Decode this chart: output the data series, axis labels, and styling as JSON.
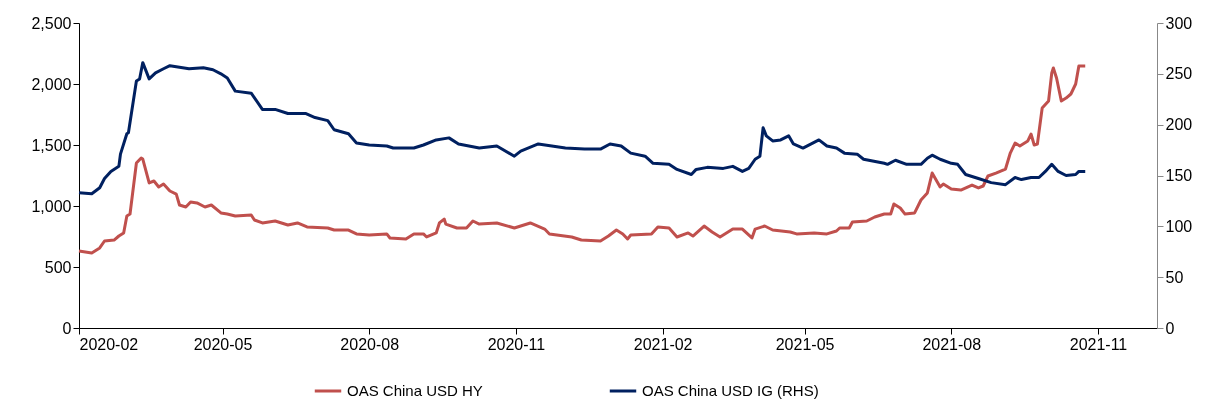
{
  "chart_data": {
    "type": "line",
    "legend": "bottom",
    "grid": false,
    "line_style": "solid",
    "marker": "none",
    "xlim": [
      "2020-02-01",
      "2021-12-08"
    ],
    "xticks": [
      "2020-02",
      "2020-05",
      "2020-08",
      "2020-11",
      "2021-02",
      "2021-05",
      "2021-08",
      "2021-11"
    ],
    "ylim": [
      0,
      2500
    ],
    "yticks": [
      0,
      500,
      {
        "value": 1000,
        "label": "1,000"
      },
      {
        "value": 1500,
        "label": "1,500"
      },
      {
        "value": 2000,
        "label": "2,000"
      },
      {
        "value": 2500,
        "label": "2,500"
      }
    ],
    "y2lim": [
      0,
      300
    ],
    "y2ticks": [
      0,
      50,
      100,
      150,
      200,
      250,
      300
    ],
    "series": [
      {
        "name": "OAS China USD HY",
        "color": "#c0504d",
        "x": [
          "2020-02-01",
          "2020-02-09",
          "2020-02-14",
          "2020-02-17",
          "2020-02-23",
          "2020-02-26",
          "2020-02-29",
          "2020-03-02",
          "2020-03-04",
          "2020-03-08",
          "2020-03-11",
          "2020-03-12",
          "2020-03-16",
          "2020-03-19",
          "2020-03-22",
          "2020-03-25",
          "2020-03-29",
          "2020-04-02",
          "2020-04-04",
          "2020-04-08",
          "2020-04-11",
          "2020-04-15",
          "2020-04-20",
          "2020-04-24",
          "2020-04-30",
          "2020-05-04",
          "2020-05-09",
          "2020-05-19",
          "2020-05-21",
          "2020-05-26",
          "2020-06-03",
          "2020-06-11",
          "2020-06-17",
          "2020-06-23",
          "2020-07-06",
          "2020-07-10",
          "2020-07-19",
          "2020-07-24",
          "2020-08-01",
          "2020-08-12",
          "2020-08-14",
          "2020-08-24",
          "2020-08-29",
          "2020-09-04",
          "2020-09-06",
          "2020-09-12",
          "2020-09-14",
          "2020-09-17",
          "2020-09-18",
          "2020-09-25",
          "2020-10-01",
          "2020-10-05",
          "2020-10-09",
          "2020-10-20",
          "2020-10-31",
          "2020-11-10",
          "2020-11-19",
          "2020-11-22",
          "2020-12-06",
          "2020-12-12",
          "2020-12-24",
          "2020-12-29",
          "2021-01-03",
          "2021-01-07",
          "2021-01-10",
          "2021-01-12",
          "2021-01-25",
          "2021-01-29",
          "2021-02-05",
          "2021-02-10",
          "2021-02-17",
          "2021-02-20",
          "2021-02-27",
          "2021-03-04",
          "2021-03-09",
          "2021-03-17",
          "2021-03-23",
          "2021-03-29",
          "2021-03-31",
          "2021-04-06",
          "2021-04-11",
          "2021-04-22",
          "2021-04-26",
          "2021-05-07",
          "2021-05-15",
          "2021-05-21",
          "2021-05-23",
          "2021-05-29",
          "2021-05-31",
          "2021-06-09",
          "2021-06-14",
          "2021-06-20",
          "2021-06-24",
          "2021-06-26",
          "2021-06-30",
          "2021-07-03",
          "2021-07-09",
          "2021-07-13",
          "2021-07-17",
          "2021-07-20",
          "2021-07-25",
          "2021-07-27",
          "2021-08-01",
          "2021-08-07",
          "2021-08-14",
          "2021-08-18",
          "2021-08-21",
          "2021-08-24",
          "2021-08-29",
          "2021-09-04",
          "2021-09-07",
          "2021-09-10",
          "2021-09-13",
          "2021-09-18",
          "2021-09-20",
          "2021-09-22",
          "2021-09-24",
          "2021-09-27",
          "2021-10-01",
          "2021-10-03",
          "2021-10-04",
          "2021-10-06",
          "2021-10-09",
          "2021-10-12",
          "2021-10-15",
          "2021-10-18",
          "2021-10-20",
          "2021-10-24"
        ],
        "values": [
          631,
          615,
          656,
          713,
          721,
          754,
          779,
          918,
          934,
          1352,
          1393,
          1385,
          1189,
          1205,
          1156,
          1180,
          1123,
          1098,
          1008,
          992,
          1033,
          1025,
          992,
          1008,
          943,
          934,
          918,
          926,
          885,
          861,
          877,
          844,
          861,
          828,
          820,
          803,
          803,
          771,
          762,
          771,
          738,
          730,
          771,
          771,
          746,
          779,
          861,
          893,
          852,
          820,
          820,
          877,
          852,
          861,
          820,
          861,
          811,
          771,
          746,
          721,
          713,
          754,
          803,
          771,
          730,
          762,
          771,
          828,
          820,
          746,
          779,
          754,
          836,
          787,
          746,
          811,
          811,
          738,
          811,
          836,
          803,
          787,
          771,
          779,
          771,
          795,
          820,
          820,
          869,
          877,
          910,
          934,
          934,
          1016,
          984,
          934,
          943,
          1049,
          1107,
          1270,
          1156,
          1180,
          1139,
          1131,
          1172,
          1148,
          1164,
          1246,
          1270,
          1303,
          1434,
          1516,
          1492,
          1533,
          1590,
          1500,
          1508,
          1803,
          1861,
          2090,
          2131,
          2049,
          1861,
          1885,
          1918,
          2000,
          2148,
          2148
        ]
      },
      {
        "name": "OAS China USD IG (RHS)",
        "color": "#002060",
        "axis": "y2",
        "x": [
          "2020-02-01",
          "2020-02-09",
          "2020-02-14",
          "2020-02-17",
          "2020-02-21",
          "2020-02-26",
          "2020-02-27",
          "2020-03-02",
          "2020-03-03",
          "2020-03-08",
          "2020-03-10",
          "2020-03-12",
          "2020-03-16",
          "2020-03-20",
          "2020-03-25",
          "2020-03-29",
          "2020-04-10",
          "2020-04-19",
          "2020-04-25",
          "2020-04-30",
          "2020-05-04",
          "2020-05-09",
          "2020-05-19",
          "2020-05-26",
          "2020-06-03",
          "2020-06-11",
          "2020-06-22",
          "2020-06-28",
          "2020-07-06",
          "2020-07-10",
          "2020-07-19",
          "2020-07-24",
          "2020-08-01",
          "2020-08-12",
          "2020-08-16",
          "2020-08-29",
          "2020-09-04",
          "2020-09-12",
          "2020-09-20",
          "2020-09-26",
          "2020-10-09",
          "2020-10-20",
          "2020-10-31",
          "2020-11-04",
          "2020-11-15",
          "2020-12-02",
          "2020-12-14",
          "2020-12-24",
          "2020-12-30",
          "2021-01-06",
          "2021-01-12",
          "2021-01-21",
          "2021-01-26",
          "2021-02-05",
          "2021-02-10",
          "2021-02-19",
          "2021-02-22",
          "2021-03-01",
          "2021-03-11",
          "2021-03-17",
          "2021-03-23",
          "2021-03-27",
          "2021-03-31",
          "2021-04-03",
          "2021-04-05",
          "2021-04-07",
          "2021-04-11",
          "2021-04-16",
          "2021-04-21",
          "2021-04-24",
          "2021-04-30",
          "2021-05-10",
          "2021-05-15",
          "2021-05-21",
          "2021-05-26",
          "2021-06-03",
          "2021-06-07",
          "2021-06-20",
          "2021-06-22",
          "2021-06-27",
          "2021-07-04",
          "2021-07-13",
          "2021-07-17",
          "2021-07-20",
          "2021-07-25",
          "2021-08-01",
          "2021-08-05",
          "2021-08-10",
          "2021-08-18",
          "2021-08-26",
          "2021-09-04",
          "2021-09-10",
          "2021-09-14",
          "2021-09-20",
          "2021-09-25",
          "2021-09-29",
          "2021-10-03",
          "2021-10-07",
          "2021-10-12",
          "2021-10-18",
          "2021-10-20",
          "2021-10-24"
        ],
        "values": [
          133,
          132,
          138,
          147,
          154,
          159,
          171,
          191,
          192,
          243,
          245,
          261,
          245,
          251,
          255,
          258,
          255,
          256,
          254,
          250,
          246,
          233,
          231,
          215,
          215,
          211,
          211,
          207,
          204,
          195,
          191,
          182,
          180,
          179,
          177,
          177,
          180,
          185,
          187,
          181,
          177,
          179,
          169,
          174,
          181,
          177,
          176,
          176,
          181,
          179,
          172,
          169,
          162,
          161,
          156,
          151,
          156,
          158,
          157,
          159,
          154,
          157,
          166,
          169,
          197,
          189,
          184,
          185,
          189,
          181,
          177,
          185,
          179,
          177,
          172,
          171,
          166,
          162,
          161,
          165,
          161,
          161,
          167,
          170,
          166,
          162,
          161,
          151,
          147,
          143,
          141,
          148,
          146,
          148,
          148,
          154,
          161,
          154,
          150,
          151,
          154,
          154
        ]
      }
    ]
  }
}
